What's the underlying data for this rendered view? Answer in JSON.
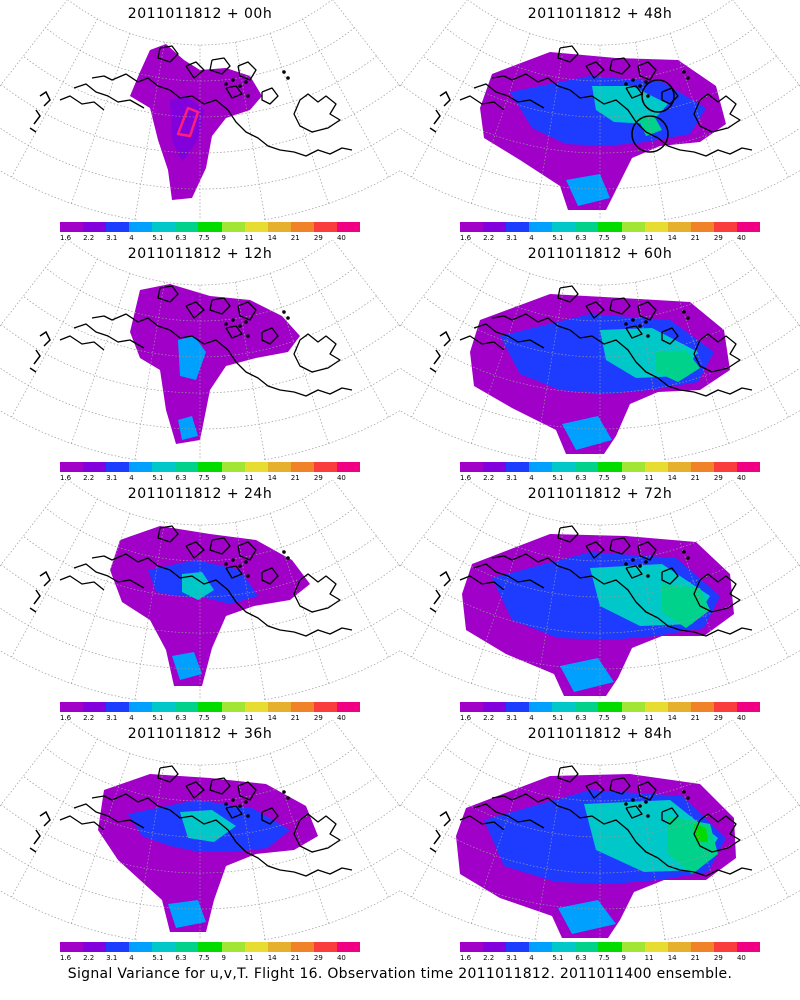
{
  "panels": [
    {
      "title": "2011011812 + 00h",
      "stage": 0,
      "flight_track": true,
      "circles": false
    },
    {
      "title": "2011011812 + 48h",
      "stage": 4,
      "flight_track": false,
      "circles": true
    },
    {
      "title": "2011011812 + 12h",
      "stage": 1,
      "flight_track": false,
      "circles": false
    },
    {
      "title": "2011011812 + 60h",
      "stage": 5,
      "flight_track": false,
      "circles": false
    },
    {
      "title": "2011011812 + 24h",
      "stage": 2,
      "flight_track": false,
      "circles": false
    },
    {
      "title": "2011011812 + 72h",
      "stage": 6,
      "flight_track": false,
      "circles": false
    },
    {
      "title": "2011011812 + 36h",
      "stage": 3,
      "flight_track": false,
      "circles": false
    },
    {
      "title": "2011011812 + 84h",
      "stage": 7,
      "flight_track": false,
      "circles": false
    }
  ],
  "colorbar": {
    "labels": [
      "1.6",
      "2.2",
      "3.1",
      "4",
      "5.1",
      "6.3",
      "7.5",
      "9",
      "11",
      "14",
      "21",
      "29",
      "40"
    ],
    "colors": [
      "#a000c8",
      "#8200dc",
      "#1e3cff",
      "#00a0ff",
      "#00c8c8",
      "#00d28c",
      "#00dc00",
      "#a0e632",
      "#e6dc32",
      "#e6af2d",
      "#f08228",
      "#fa3c3c",
      "#f00082"
    ]
  },
  "caption": "Signal Variance for u,v,T. Flight 16. Observation time 2011011812. 2011011400 ensemble."
}
